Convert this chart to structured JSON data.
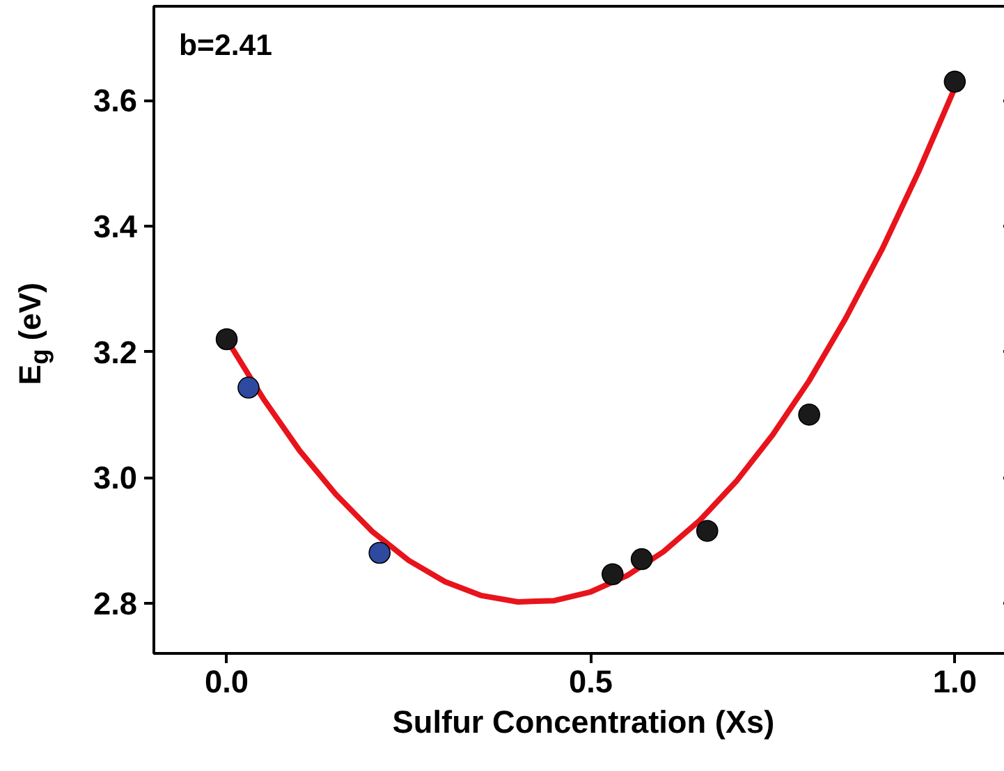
{
  "chart_data": {
    "type": "scatter",
    "xlabel": "Sulfur Concentration (Xs)",
    "ylabel": "E$_{g}$ (eV)",
    "annotations": [
      "b=2.41"
    ],
    "xlim": [
      -0.1,
      1.08
    ],
    "ylim": [
      2.72,
      3.75
    ],
    "xticks": [
      {
        "value": 0,
        "label": "0.0"
      },
      {
        "value": 0.5,
        "label": "0.5"
      },
      {
        "value": 1,
        "label": "1.0"
      }
    ],
    "yticks": [
      {
        "value": 2.8,
        "label": "2.8"
      },
      {
        "value": 3.0,
        "label": "3.0"
      },
      {
        "value": 3.2,
        "label": "3.2"
      },
      {
        "value": 3.4,
        "label": "3.4"
      },
      {
        "value": 3.6,
        "label": "3.6"
      }
    ],
    "grid": false,
    "series": [
      {
        "type": "line",
        "color": "#e8141c",
        "line_style": "solid",
        "marker": "none",
        "x": [
          0,
          0.05,
          0.1,
          0.15,
          0.2,
          0.25,
          0.3,
          0.35,
          0.4,
          0.45,
          0.5,
          0.55,
          0.6,
          0.65,
          0.7,
          0.75,
          0.8,
          0.85,
          0.9,
          0.95,
          1.0
        ],
        "values": [
          3.22,
          3.126,
          3.043,
          2.973,
          2.914,
          2.868,
          2.834,
          2.812,
          2.802,
          2.804,
          2.818,
          2.844,
          2.882,
          2.932,
          2.994,
          3.068,
          3.154,
          3.253,
          3.363,
          3.486,
          3.62
        ]
      },
      {
        "marker": "circle",
        "color": "#1a1a1a",
        "x": [
          0,
          0.53,
          0.57,
          0.66,
          0.8,
          1.0
        ],
        "values": [
          3.22,
          2.846,
          2.87,
          2.915,
          3.1,
          3.63
        ]
      },
      {
        "marker": "circle",
        "color": "#2e4a9e",
        "x": [
          0.03,
          0.21
        ],
        "values": [
          3.143,
          2.88
        ]
      }
    ]
  }
}
